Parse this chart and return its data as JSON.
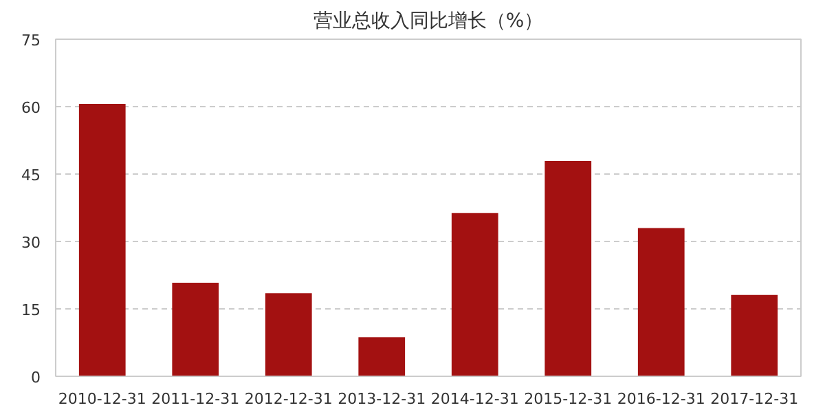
{
  "chart_data": {
    "type": "bar",
    "title": "营业总收入同比增长（%）",
    "categories": [
      "2010-12-31",
      "2011-12-31",
      "2012-12-31",
      "2013-12-31",
      "2014-12-31",
      "2015-12-31",
      "2016-12-31",
      "2017-12-31"
    ],
    "values": [
      60.6,
      20.8,
      18.5,
      8.7,
      36.3,
      47.9,
      33.0,
      18.1
    ],
    "color": "#a31111",
    "ylim": [
      0,
      75
    ],
    "yticks": [
      0,
      15,
      30,
      45,
      60,
      75
    ],
    "grid": "y"
  }
}
